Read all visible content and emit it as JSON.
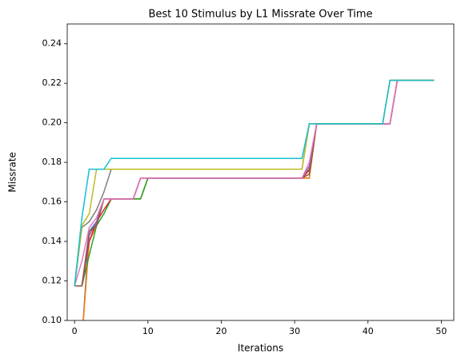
{
  "chart_data": {
    "type": "line",
    "title": "Best 10 Stimulus by L1 Missrate Over Time",
    "xlabel": "Iterations",
    "ylabel": "Missrate",
    "xlim": [
      -1,
      51.7
    ],
    "ylim": [
      0.1,
      0.25
    ],
    "xticks": [
      0,
      10,
      20,
      30,
      40,
      50
    ],
    "yticks": [
      {
        "value": 0.1,
        "label": "0.10"
      },
      0.12,
      0.14,
      0.16,
      0.18,
      {
        "value": 0.2,
        "label": "0.20"
      },
      0.22,
      0.24
    ],
    "series": [
      {
        "color": "#1f77b4",
        "x": [
          1,
          2,
          3,
          4,
          9,
          10,
          32,
          33,
          43,
          44,
          49
        ],
        "values": [
          0.09,
          0.145,
          0.15,
          0.1615,
          0.1615,
          0.172,
          0.172,
          0.1995,
          0.1995,
          0.2215,
          0.2215
        ]
      },
      {
        "color": "#ff7f0e",
        "x": [
          1,
          2,
          3,
          4,
          9,
          10,
          32,
          33,
          43,
          44,
          49
        ],
        "values": [
          0.09,
          0.14,
          0.148,
          0.1615,
          0.1615,
          0.172,
          0.172,
          0.1995,
          0.1995,
          0.2215,
          0.2215
        ]
      },
      {
        "color": "#2ca02c",
        "x": [
          0,
          1,
          2,
          3,
          4,
          5,
          9,
          10,
          31,
          32,
          33,
          43,
          44,
          49
        ],
        "values": [
          0.1175,
          0.1175,
          0.133,
          0.148,
          0.154,
          0.1615,
          0.1615,
          0.172,
          0.172,
          0.1765,
          0.1995,
          0.1995,
          0.2215,
          0.2215
        ]
      },
      {
        "color": "#d62728",
        "x": [
          0,
          1,
          2,
          3,
          4,
          5,
          8,
          9,
          31,
          32,
          33,
          43,
          44,
          49
        ],
        "values": [
          0.1175,
          0.1175,
          0.14,
          0.15,
          0.156,
          0.1615,
          0.1615,
          0.172,
          0.172,
          0.176,
          0.1995,
          0.1995,
          0.2215,
          0.2215
        ]
      },
      {
        "color": "#9467bd",
        "x": [
          0,
          1,
          2,
          3,
          4,
          8,
          9,
          31,
          32,
          33,
          43,
          44,
          49
        ],
        "values": [
          0.1175,
          0.1175,
          0.143,
          0.15,
          0.1615,
          0.1615,
          0.172,
          0.172,
          0.178,
          0.1995,
          0.1995,
          0.2215,
          0.2215
        ]
      },
      {
        "color": "#8c564b",
        "x": [
          0,
          1,
          2,
          3,
          4,
          8,
          9,
          31,
          32,
          33,
          43,
          44,
          49
        ],
        "values": [
          0.1175,
          0.1175,
          0.145,
          0.148,
          0.1615,
          0.1615,
          0.172,
          0.172,
          0.174,
          0.1995,
          0.1995,
          0.2215,
          0.2215
        ]
      },
      {
        "color": "#e377c2",
        "x": [
          0,
          1,
          2,
          3,
          4,
          8,
          9,
          31,
          32,
          33,
          43,
          44,
          49
        ],
        "values": [
          0.1175,
          0.13,
          0.147,
          0.152,
          0.1615,
          0.1615,
          0.172,
          0.172,
          0.18,
          0.1995,
          0.1995,
          0.2215,
          0.2215
        ]
      },
      {
        "color": "#7f7f7f",
        "x": [
          0,
          1,
          2,
          3,
          4,
          5,
          31,
          32,
          42,
          43,
          49
        ],
        "values": [
          0.1175,
          0.147,
          0.15,
          0.156,
          0.165,
          0.1765,
          0.1765,
          0.1995,
          0.1995,
          0.2215,
          0.2215
        ]
      },
      {
        "color": "#bcbd22",
        "x": [
          0,
          1,
          2,
          3,
          31,
          32,
          42,
          43,
          49
        ],
        "values": [
          0.1175,
          0.148,
          0.154,
          0.1765,
          0.1765,
          0.1995,
          0.1995,
          0.2215,
          0.2215
        ]
      },
      {
        "color": "#17becf",
        "x": [
          0,
          1,
          2,
          4,
          5,
          31,
          32,
          42,
          43,
          49
        ],
        "values": [
          0.1175,
          0.152,
          0.1765,
          0.1765,
          0.182,
          0.182,
          0.1995,
          0.1995,
          0.2215,
          0.2215
        ]
      }
    ]
  }
}
